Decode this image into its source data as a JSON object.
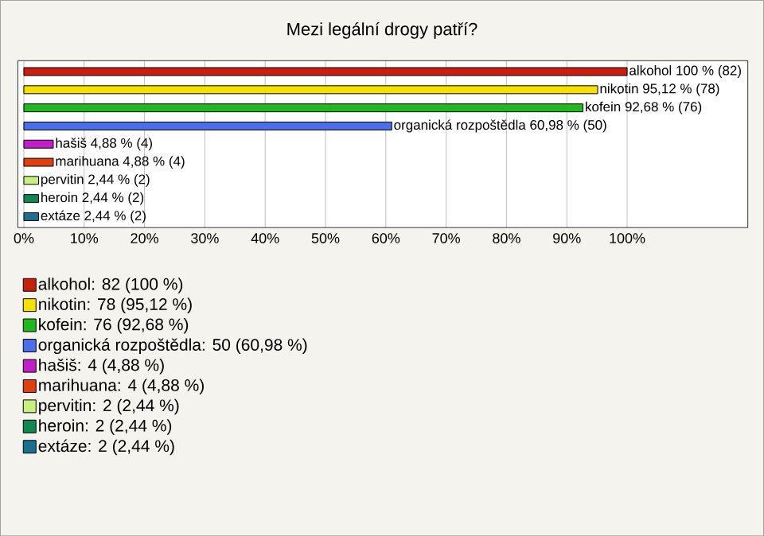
{
  "chart_data": {
    "type": "bar",
    "orientation": "horizontal",
    "title": "Mezi legální drogy patří?",
    "categories": [
      null,
      null,
      null,
      null,
      null,
      null,
      null,
      null,
      null
    ],
    "series": [
      {
        "name": "alkohol: 82 (100 %)",
        "color": "#c8200e",
        "values": [
          100,
          null,
          null,
          null,
          null,
          null,
          null,
          null,
          null
        ],
        "value_labels": [
          "alkohol 100 % (82)",
          null,
          null,
          null,
          null,
          null,
          null,
          null,
          null
        ]
      },
      {
        "name": "nikotin: 78 (95,12 %)",
        "color": "#f5e000",
        "values": [
          null,
          95.12,
          null,
          null,
          null,
          null,
          null,
          null,
          null
        ],
        "value_labels": [
          null,
          "nikotin 95,12 % (78)",
          null,
          null,
          null,
          null,
          null,
          null,
          null
        ]
      },
      {
        "name": "kofein: 76 (92,68 %)",
        "color": "#1fb81f",
        "values": [
          null,
          null,
          92.68,
          null,
          null,
          null,
          null,
          null,
          null
        ],
        "value_labels": [
          null,
          null,
          "kofein 92,68 % (76)",
          null,
          null,
          null,
          null,
          null,
          null
        ]
      },
      {
        "name": "organická rozpoštědla: 50 (60,98 %)",
        "color": "#4a6fe8",
        "values": [
          null,
          null,
          null,
          60.98,
          null,
          null,
          null,
          null,
          null
        ],
        "value_labels": [
          null,
          null,
          null,
          "organická rozpoštědla 60,98 % (50)",
          null,
          null,
          null,
          null,
          null
        ]
      },
      {
        "name": "hašiš: 4 (4,88 %)",
        "color": "#c21ec8",
        "values": [
          null,
          null,
          null,
          null,
          4.88,
          null,
          null,
          null,
          null
        ],
        "value_labels": [
          null,
          null,
          null,
          null,
          "hašiš 4,88 % (4)",
          null,
          null,
          null,
          null
        ]
      },
      {
        "name": "marihuana: 4 (4,88 %)",
        "color": "#e0400e",
        "values": [
          null,
          null,
          null,
          null,
          null,
          4.88,
          null,
          null,
          null
        ],
        "value_labels": [
          null,
          null,
          null,
          null,
          null,
          "marihuana 4,88 % (4)",
          null,
          null,
          null
        ]
      },
      {
        "name": "pervitin: 2 (2,44 %)",
        "color": "#c8f080",
        "values": [
          null,
          null,
          null,
          null,
          null,
          null,
          2.44,
          null,
          null
        ],
        "value_labels": [
          null,
          null,
          null,
          null,
          null,
          null,
          "pervitin 2,44 % (2)",
          null,
          null
        ]
      },
      {
        "name": "heroin: 2 (2,44 %)",
        "color": "#108850",
        "values": [
          null,
          null,
          null,
          null,
          null,
          null,
          null,
          2.44,
          null
        ],
        "value_labels": [
          null,
          null,
          null,
          null,
          null,
          null,
          null,
          "heroin 2,44 % (2)",
          null
        ]
      },
      {
        "name": "extáze: 2 (2,44 %)",
        "color": "#1a7090",
        "values": [
          null,
          null,
          null,
          null,
          null,
          null,
          null,
          null,
          2.44
        ],
        "value_labels": [
          null,
          null,
          null,
          null,
          null,
          null,
          null,
          null,
          "extáze 2,44 % (2)"
        ]
      }
    ],
    "xlim": [
      -1,
      120
    ],
    "xticks": [
      {
        "value": 0,
        "label": "0%"
      },
      {
        "value": 10,
        "label": "10%"
      },
      {
        "value": 20,
        "label": "20%"
      },
      {
        "value": 30,
        "label": "30%"
      },
      {
        "value": 40,
        "label": "40%"
      },
      {
        "value": 50,
        "label": "50%"
      },
      {
        "value": 60,
        "label": "60%"
      },
      {
        "value": 70,
        "label": "70%"
      },
      {
        "value": 80,
        "label": "80%"
      },
      {
        "value": 90,
        "label": "90%"
      },
      {
        "value": 100,
        "label": "100%"
      }
    ],
    "grid": "x",
    "legend": "bottom",
    "tick_labels": "x"
  }
}
